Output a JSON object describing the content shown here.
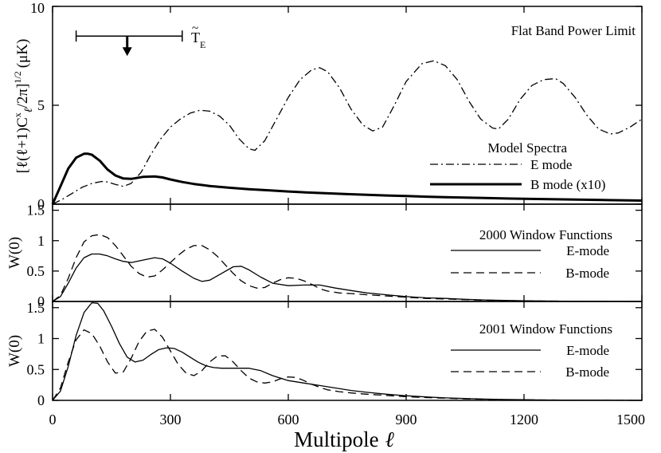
{
  "chart_data": [
    {
      "type": "line",
      "panel": "top",
      "ylabel": "[ℓ(ℓ+1)C",
      "ylabel_sup": "x",
      "ylabel_sub": "ℓ",
      "ylabel_tail": "/2π]",
      "ylabel_pow": "1/2",
      "ylabel_unit": "(μK)",
      "xlim": [
        0,
        1500
      ],
      "ylim": [
        0,
        10
      ],
      "yticks": [
        0,
        5,
        10
      ],
      "title": "Flat Band Power Limit",
      "limit_marker": {
        "x_range": [
          60,
          330
        ],
        "x_center": 190,
        "y": 8.5,
        "label": "T",
        "label_accent": "~",
        "label_sub": "E"
      },
      "legend_title": "Model Spectra",
      "series": [
        {
          "name": "E mode",
          "style": "dashdot",
          "x": [
            0,
            25,
            50,
            75,
            100,
            125,
            140,
            160,
            180,
            200,
            225,
            250,
            275,
            300,
            325,
            350,
            375,
            400,
            425,
            450,
            475,
            500,
            515,
            540,
            570,
            600,
            630,
            660,
            680,
            700,
            730,
            760,
            790,
            815,
            840,
            870,
            900,
            940,
            970,
            1000,
            1030,
            1060,
            1090,
            1120,
            1135,
            1160,
            1190,
            1220,
            1250,
            1280,
            1300,
            1330,
            1360,
            1390,
            1420,
            1440,
            1470,
            1500
          ],
          "values": [
            0,
            0.25,
            0.55,
            0.85,
            1.05,
            1.15,
            1.12,
            1.0,
            0.9,
            1.05,
            1.6,
            2.5,
            3.3,
            3.9,
            4.3,
            4.6,
            4.75,
            4.7,
            4.45,
            4.0,
            3.3,
            2.8,
            2.72,
            3.2,
            4.3,
            5.4,
            6.3,
            6.8,
            6.9,
            6.7,
            5.9,
            4.8,
            4.0,
            3.7,
            3.9,
            5.0,
            6.2,
            7.1,
            7.25,
            7.0,
            6.3,
            5.2,
            4.3,
            3.85,
            3.8,
            4.3,
            5.3,
            6.0,
            6.3,
            6.35,
            6.1,
            5.4,
            4.5,
            3.8,
            3.55,
            3.6,
            3.9,
            4.3
          ]
        },
        {
          "name": "B mode (x10)",
          "style": "thick",
          "x": [
            0,
            20,
            40,
            60,
            80,
            90,
            100,
            120,
            140,
            160,
            180,
            200,
            230,
            260,
            280,
            300,
            330,
            360,
            400,
            450,
            500,
            550,
            600,
            650,
            700,
            750,
            800,
            850,
            900,
            950,
            1000,
            1100,
            1200,
            1300,
            1400,
            1500
          ],
          "values": [
            0,
            0.9,
            1.8,
            2.35,
            2.55,
            2.55,
            2.5,
            2.2,
            1.75,
            1.45,
            1.3,
            1.28,
            1.38,
            1.4,
            1.35,
            1.25,
            1.12,
            1.02,
            0.92,
            0.83,
            0.76,
            0.7,
            0.64,
            0.59,
            0.55,
            0.51,
            0.47,
            0.44,
            0.41,
            0.38,
            0.35,
            0.31,
            0.27,
            0.24,
            0.21,
            0.18
          ]
        }
      ]
    },
    {
      "type": "line",
      "panel": "middle",
      "ylabel": "W(0)",
      "xlim": [
        0,
        1500
      ],
      "ylim": [
        0,
        1.6
      ],
      "yticks": [
        0,
        0.5,
        1,
        1.5
      ],
      "ytick_labels": [
        "0",
        "0.5",
        "1",
        "1.5"
      ],
      "legend_title": "2000 Window Functions",
      "series": [
        {
          "name": "E-mode",
          "style": "solid",
          "x": [
            0,
            20,
            40,
            60,
            80,
            100,
            120,
            140,
            160,
            180,
            200,
            230,
            260,
            280,
            300,
            330,
            360,
            380,
            400,
            430,
            460,
            480,
            500,
            530,
            560,
            600,
            640,
            680,
            720,
            760,
            800,
            850,
            900,
            950,
            1000,
            1050,
            1100,
            1150,
            1200,
            1250,
            1300,
            1350,
            1400,
            1450,
            1500
          ],
          "values": [
            0,
            0.08,
            0.3,
            0.55,
            0.72,
            0.78,
            0.78,
            0.75,
            0.7,
            0.66,
            0.64,
            0.68,
            0.72,
            0.7,
            0.63,
            0.5,
            0.38,
            0.33,
            0.35,
            0.46,
            0.57,
            0.58,
            0.52,
            0.4,
            0.3,
            0.26,
            0.27,
            0.27,
            0.22,
            0.18,
            0.14,
            0.11,
            0.08,
            0.06,
            0.05,
            0.035,
            0.025,
            0.018,
            0.012,
            0.008,
            0.005,
            0.003,
            0.002,
            0.001,
            0
          ]
        },
        {
          "name": "B-mode",
          "style": "dashed",
          "x": [
            0,
            20,
            40,
            60,
            80,
            100,
            120,
            140,
            160,
            180,
            200,
            220,
            240,
            260,
            280,
            300,
            320,
            340,
            360,
            380,
            400,
            420,
            440,
            460,
            480,
            500,
            520,
            540,
            560,
            580,
            600,
            620,
            640,
            660,
            680,
            700,
            730,
            760,
            800,
            850,
            900,
            950,
            1000,
            1050,
            1100,
            1150,
            1200,
            1250,
            1300,
            1350,
            1400,
            1450,
            1500
          ],
          "values": [
            0,
            0.1,
            0.38,
            0.72,
            0.98,
            1.08,
            1.1,
            1.05,
            0.92,
            0.75,
            0.58,
            0.46,
            0.4,
            0.42,
            0.52,
            0.64,
            0.76,
            0.86,
            0.92,
            0.92,
            0.85,
            0.74,
            0.6,
            0.46,
            0.34,
            0.26,
            0.22,
            0.23,
            0.3,
            0.36,
            0.39,
            0.38,
            0.34,
            0.28,
            0.21,
            0.17,
            0.14,
            0.13,
            0.11,
            0.09,
            0.07,
            0.05,
            0.04,
            0.03,
            0.02,
            0.015,
            0.01,
            0.007,
            0.005,
            0.003,
            0.002,
            0.001,
            0
          ]
        }
      ]
    },
    {
      "type": "line",
      "panel": "bottom",
      "ylabel": "W(0)",
      "xlabel": "Multipole",
      "xlabel_symbol": "ℓ",
      "xlim": [
        0,
        1500
      ],
      "ylim": [
        0,
        1.6
      ],
      "xticks": [
        0,
        300,
        600,
        900,
        1200,
        1500
      ],
      "xtick_labels": [
        "0",
        "300",
        "600",
        "900",
        "1200",
        "1500"
      ],
      "yticks": [
        0,
        0.5,
        1,
        1.5
      ],
      "ytick_labels": [
        "0",
        "0.5",
        "1",
        "1.5"
      ],
      "legend_title": "2001 Window Functions",
      "series": [
        {
          "name": "E-mode",
          "style": "solid",
          "x": [
            0,
            20,
            40,
            60,
            80,
            100,
            115,
            130,
            150,
            170,
            190,
            210,
            230,
            250,
            270,
            290,
            310,
            330,
            350,
            370,
            390,
            410,
            430,
            450,
            470,
            500,
            530,
            560,
            600,
            640,
            680,
            720,
            760,
            800,
            850,
            900,
            950,
            1000,
            1050,
            1100,
            1150,
            1200,
            1250,
            1300,
            1400,
            1500
          ],
          "values": [
            0,
            0.15,
            0.55,
            1.05,
            1.42,
            1.58,
            1.57,
            1.45,
            1.2,
            0.92,
            0.7,
            0.62,
            0.65,
            0.74,
            0.82,
            0.85,
            0.84,
            0.78,
            0.7,
            0.62,
            0.56,
            0.53,
            0.52,
            0.52,
            0.52,
            0.52,
            0.48,
            0.4,
            0.32,
            0.28,
            0.24,
            0.2,
            0.16,
            0.13,
            0.1,
            0.075,
            0.055,
            0.04,
            0.03,
            0.02,
            0.014,
            0.01,
            0.006,
            0.004,
            0.002,
            0
          ]
        },
        {
          "name": "B-mode",
          "style": "dashed",
          "x": [
            0,
            20,
            40,
            60,
            80,
            100,
            120,
            140,
            160,
            180,
            200,
            220,
            240,
            260,
            280,
            300,
            320,
            340,
            360,
            380,
            400,
            420,
            440,
            460,
            480,
            500,
            520,
            540,
            560,
            580,
            600,
            620,
            640,
            660,
            680,
            700,
            730,
            760,
            800,
            850,
            900,
            950,
            1000,
            1050,
            1100,
            1150,
            1200,
            1250,
            1300,
            1350,
            1400,
            1450,
            1500
          ],
          "values": [
            0,
            0.2,
            0.62,
            0.98,
            1.14,
            1.08,
            0.88,
            0.62,
            0.44,
            0.46,
            0.68,
            0.95,
            1.12,
            1.15,
            1.02,
            0.8,
            0.58,
            0.44,
            0.4,
            0.48,
            0.62,
            0.72,
            0.72,
            0.62,
            0.48,
            0.36,
            0.3,
            0.28,
            0.3,
            0.35,
            0.38,
            0.37,
            0.32,
            0.26,
            0.21,
            0.17,
            0.14,
            0.12,
            0.1,
            0.08,
            0.06,
            0.045,
            0.035,
            0.025,
            0.018,
            0.012,
            0.008,
            0.006,
            0.004,
            0.003,
            0.002,
            0.001,
            0
          ]
        }
      ]
    }
  ]
}
